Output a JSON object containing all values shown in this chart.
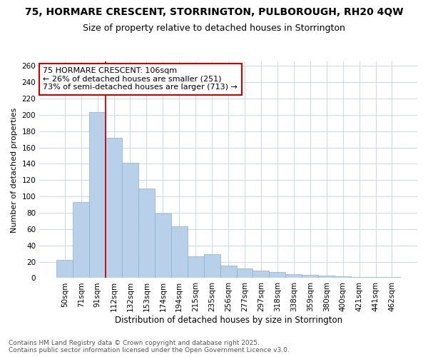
{
  "title": "75, HORMARE CRESCENT, STORRINGTON, PULBOROUGH, RH20 4QW",
  "subtitle": "Size of property relative to detached houses in Storrington",
  "xlabel": "Distribution of detached houses by size in Storrington",
  "ylabel": "Number of detached properties",
  "bar_labels": [
    "50sqm",
    "71sqm",
    "91sqm",
    "112sqm",
    "132sqm",
    "153sqm",
    "174sqm",
    "194sqm",
    "215sqm",
    "235sqm",
    "256sqm",
    "277sqm",
    "297sqm",
    "318sqm",
    "338sqm",
    "359sqm",
    "380sqm",
    "400sqm",
    "421sqm",
    "441sqm",
    "462sqm"
  ],
  "bar_values": [
    22,
    93,
    203,
    172,
    141,
    110,
    79,
    63,
    27,
    29,
    15,
    12,
    9,
    7,
    5,
    4,
    3,
    2,
    1,
    1,
    1
  ],
  "bar_color": "#b8d0ea",
  "bar_edge_color": "#8ab0d0",
  "annotation_text": "75 HORMARE CRESCENT: 106sqm\n← 26% of detached houses are smaller (251)\n73% of semi-detached houses are larger (713) →",
  "annotation_box_color": "#ffffff",
  "annotation_box_edge": "#cc0000",
  "line_color": "#cc0000",
  "ylim": [
    0,
    265
  ],
  "yticks": [
    0,
    20,
    40,
    60,
    80,
    100,
    120,
    140,
    160,
    180,
    200,
    220,
    240,
    260
  ],
  "footer_line1": "Contains HM Land Registry data © Crown copyright and database right 2025.",
  "footer_line2": "Contains public sector information licensed under the Open Government Licence v3.0.",
  "background_color": "#ffffff",
  "grid_color": "#c8d8e8",
  "title_fontsize": 10,
  "subtitle_fontsize": 9,
  "xlabel_fontsize": 8.5,
  "ylabel_fontsize": 8,
  "tick_fontsize": 7.5,
  "annotation_fontsize": 8,
  "footer_fontsize": 6.5
}
